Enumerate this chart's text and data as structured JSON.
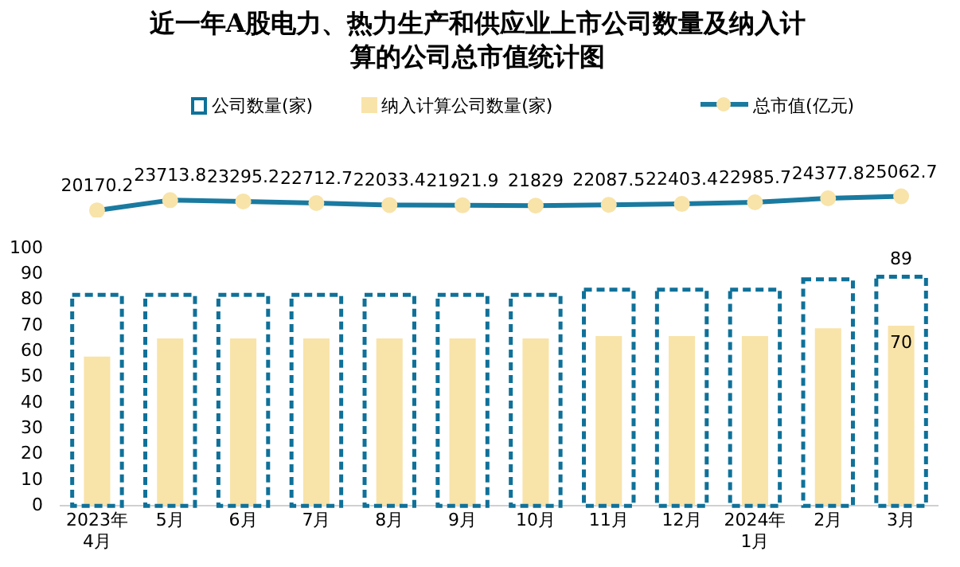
{
  "chart_data": [
    {
      "type": "line",
      "title": "近一年A股电力、热力生产和供应业上市公司数量及纳入计算的公司总市值统计图",
      "categories": [
        null,
        null,
        null,
        null,
        null,
        null,
        null,
        null,
        null,
        null,
        null,
        null
      ],
      "series": [
        {
          "name": "总市值(亿元)",
          "color": "#1a7aa0",
          "values": [
            20170.2,
            23713.8,
            23295.2,
            22712.7,
            22033.4,
            21921.9,
            21829,
            22087.5,
            22403.4,
            22985.7,
            24377.8,
            25062.7
          ]
        }
      ],
      "marker": "circle",
      "data_labels": true,
      "tick_labels": false,
      "legend": "top"
    },
    {
      "type": "bar",
      "categories": [
        "2023年4月",
        "5月",
        "6月",
        "7月",
        "8月",
        "9月",
        "10月",
        "11月",
        "12月",
        "2024年1月",
        "2月",
        "3月"
      ],
      "series": [
        {
          "name": "公司数量(家)",
          "color": "#0f7199",
          "line_style": "dashed",
          "values": [
            82,
            82,
            82,
            82,
            82,
            82,
            82,
            84,
            84,
            84,
            88,
            89
          ],
          "value_labels": [
            null,
            null,
            null,
            null,
            null,
            null,
            null,
            null,
            null,
            null,
            null,
            "89"
          ]
        },
        {
          "name": "纳入计算公司数量(家)",
          "color": "#f8e3a9",
          "values": [
            58,
            65,
            65,
            65,
            65,
            65,
            65,
            66,
            66,
            66,
            69,
            70
          ],
          "value_labels": [
            null,
            null,
            null,
            null,
            null,
            null,
            null,
            null,
            null,
            null,
            null,
            "70"
          ]
        }
      ],
      "ylim": [
        0,
        100
      ],
      "yticks": [
        0,
        10,
        20,
        30,
        40,
        50,
        60,
        70,
        80,
        90,
        100
      ],
      "grid": false,
      "legend": "top"
    }
  ]
}
